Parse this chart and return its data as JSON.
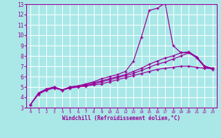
{
  "title": "",
  "xlabel": "Windchill (Refroidissement éolien,°C)",
  "ylabel": "",
  "xlim": [
    -0.5,
    23.5
  ],
  "ylim": [
    3,
    13
  ],
  "yticks": [
    3,
    4,
    5,
    6,
    7,
    8,
    9,
    10,
    11,
    12,
    13
  ],
  "xticks": [
    0,
    1,
    2,
    3,
    4,
    5,
    6,
    7,
    8,
    9,
    10,
    11,
    12,
    13,
    14,
    15,
    16,
    17,
    18,
    19,
    20,
    21,
    22,
    23
  ],
  "background_color": "#aae8e8",
  "grid_color": "#ffffff",
  "line_color": "#990099",
  "lines": [
    {
      "x": [
        0,
        1,
        2,
        3,
        4,
        5,
        6,
        7,
        8,
        9,
        10,
        11,
        12,
        13,
        14,
        15,
        16,
        17,
        18,
        19,
        20,
        21,
        22,
        23
      ],
      "y": [
        3.3,
        4.4,
        4.8,
        5.0,
        4.7,
        5.0,
        5.1,
        5.3,
        5.5,
        5.8,
        6.0,
        6.2,
        6.5,
        7.5,
        9.8,
        12.4,
        12.6,
        13.1,
        9.0,
        8.3,
        8.3,
        7.9,
        7.0,
        6.8
      ]
    },
    {
      "x": [
        0,
        1,
        2,
        3,
        4,
        5,
        6,
        7,
        8,
        9,
        10,
        11,
        12,
        13,
        14,
        15,
        16,
        17,
        18,
        19,
        20,
        21,
        22,
        23
      ],
      "y": [
        3.3,
        4.4,
        4.8,
        5.0,
        4.7,
        5.0,
        5.1,
        5.2,
        5.4,
        5.6,
        5.8,
        6.0,
        6.2,
        6.5,
        6.8,
        7.2,
        7.5,
        7.8,
        8.0,
        8.3,
        8.4,
        7.9,
        7.0,
        6.8
      ]
    },
    {
      "x": [
        0,
        1,
        2,
        3,
        4,
        5,
        6,
        7,
        8,
        9,
        10,
        11,
        12,
        13,
        14,
        15,
        16,
        17,
        18,
        19,
        20,
        21,
        22,
        23
      ],
      "y": [
        3.3,
        4.3,
        4.7,
        4.9,
        4.7,
        4.9,
        5.0,
        5.1,
        5.3,
        5.5,
        5.7,
        5.9,
        6.1,
        6.3,
        6.6,
        6.9,
        7.2,
        7.4,
        7.7,
        8.0,
        8.3,
        7.8,
        6.9,
        6.7
      ]
    },
    {
      "x": [
        0,
        1,
        2,
        3,
        4,
        5,
        6,
        7,
        8,
        9,
        10,
        11,
        12,
        13,
        14,
        15,
        16,
        17,
        18,
        19,
        20,
        21,
        22,
        23
      ],
      "y": [
        3.3,
        4.3,
        4.7,
        4.9,
        4.7,
        4.9,
        5.0,
        5.1,
        5.2,
        5.3,
        5.5,
        5.7,
        5.9,
        6.1,
        6.3,
        6.5,
        6.7,
        6.8,
        6.9,
        7.0,
        7.0,
        6.9,
        6.8,
        6.8
      ]
    }
  ]
}
